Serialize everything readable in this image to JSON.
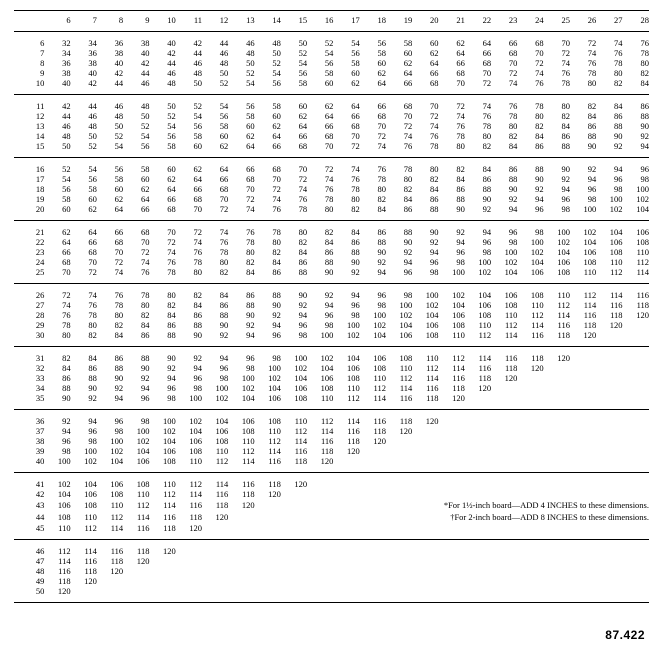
{
  "columns": [
    6,
    7,
    8,
    9,
    10,
    11,
    12,
    13,
    14,
    15,
    16,
    17,
    18,
    19,
    20,
    21,
    22,
    23,
    24,
    25,
    26,
    27,
    28
  ],
  "blocks": [
    {
      "rows": [
        {
          "label": 6,
          "vals": [
            32,
            34,
            36,
            38,
            40,
            42,
            44,
            46,
            48,
            50,
            52,
            54,
            56,
            58,
            60,
            62,
            64,
            66,
            68,
            70,
            72,
            74,
            76
          ]
        },
        {
          "label": 7,
          "vals": [
            34,
            36,
            38,
            40,
            42,
            44,
            46,
            48,
            50,
            52,
            54,
            56,
            58,
            60,
            62,
            64,
            66,
            68,
            70,
            72,
            74,
            76,
            78
          ]
        },
        {
          "label": 8,
          "vals": [
            36,
            38,
            40,
            42,
            44,
            46,
            48,
            50,
            52,
            54,
            56,
            58,
            60,
            62,
            64,
            66,
            68,
            70,
            72,
            74,
            76,
            78,
            80
          ]
        },
        {
          "label": 9,
          "vals": [
            38,
            40,
            42,
            44,
            46,
            48,
            50,
            52,
            54,
            56,
            58,
            60,
            62,
            64,
            66,
            68,
            70,
            72,
            74,
            76,
            78,
            80,
            82
          ]
        },
        {
          "label": 10,
          "vals": [
            40,
            42,
            44,
            46,
            48,
            50,
            52,
            54,
            56,
            58,
            60,
            62,
            64,
            66,
            68,
            70,
            72,
            74,
            76,
            78,
            80,
            82,
            84
          ]
        }
      ]
    },
    {
      "rows": [
        {
          "label": 11,
          "vals": [
            42,
            44,
            46,
            48,
            50,
            52,
            54,
            56,
            58,
            60,
            62,
            64,
            66,
            68,
            70,
            72,
            74,
            76,
            78,
            80,
            82,
            84,
            86
          ]
        },
        {
          "label": 12,
          "vals": [
            44,
            46,
            48,
            50,
            52,
            54,
            56,
            58,
            60,
            62,
            64,
            66,
            68,
            70,
            72,
            74,
            76,
            78,
            80,
            82,
            84,
            86,
            88
          ]
        },
        {
          "label": 13,
          "vals": [
            46,
            48,
            50,
            52,
            54,
            56,
            58,
            60,
            62,
            64,
            66,
            68,
            70,
            72,
            74,
            76,
            78,
            80,
            82,
            84,
            86,
            88,
            90
          ]
        },
        {
          "label": 14,
          "vals": [
            48,
            50,
            52,
            54,
            56,
            58,
            60,
            62,
            64,
            66,
            68,
            70,
            72,
            74,
            76,
            78,
            80,
            82,
            84,
            86,
            88,
            90,
            92
          ]
        },
        {
          "label": 15,
          "vals": [
            50,
            52,
            54,
            56,
            58,
            60,
            62,
            64,
            66,
            68,
            70,
            72,
            74,
            76,
            78,
            80,
            82,
            84,
            86,
            88,
            90,
            92,
            94
          ]
        }
      ]
    },
    {
      "rows": [
        {
          "label": 16,
          "vals": [
            52,
            54,
            56,
            58,
            60,
            62,
            64,
            66,
            68,
            70,
            72,
            74,
            76,
            78,
            80,
            82,
            84,
            86,
            88,
            90,
            92,
            94,
            96
          ]
        },
        {
          "label": 17,
          "vals": [
            54,
            56,
            58,
            60,
            62,
            64,
            66,
            68,
            70,
            72,
            74,
            76,
            78,
            80,
            82,
            84,
            86,
            88,
            90,
            92,
            94,
            96,
            98
          ]
        },
        {
          "label": 18,
          "vals": [
            56,
            58,
            60,
            62,
            64,
            66,
            68,
            70,
            72,
            74,
            76,
            78,
            80,
            82,
            84,
            86,
            88,
            90,
            92,
            94,
            96,
            98,
            100
          ]
        },
        {
          "label": 19,
          "vals": [
            58,
            60,
            62,
            64,
            66,
            68,
            70,
            72,
            74,
            76,
            78,
            80,
            82,
            84,
            86,
            88,
            90,
            92,
            94,
            96,
            98,
            100,
            102
          ]
        },
        {
          "label": 20,
          "vals": [
            60,
            62,
            64,
            66,
            68,
            70,
            72,
            74,
            76,
            78,
            80,
            82,
            84,
            86,
            88,
            90,
            92,
            94,
            96,
            98,
            100,
            102,
            104
          ]
        }
      ]
    },
    {
      "rows": [
        {
          "label": 21,
          "vals": [
            62,
            64,
            66,
            68,
            70,
            72,
            74,
            76,
            78,
            80,
            82,
            84,
            86,
            88,
            90,
            92,
            94,
            96,
            98,
            100,
            102,
            104,
            106
          ]
        },
        {
          "label": 22,
          "vals": [
            64,
            66,
            68,
            70,
            72,
            74,
            76,
            78,
            80,
            82,
            84,
            86,
            88,
            90,
            92,
            94,
            96,
            98,
            100,
            102,
            104,
            106,
            108
          ]
        },
        {
          "label": 23,
          "vals": [
            66,
            68,
            70,
            72,
            74,
            76,
            78,
            80,
            82,
            84,
            86,
            88,
            90,
            92,
            94,
            96,
            98,
            100,
            102,
            104,
            106,
            108,
            110
          ]
        },
        {
          "label": 24,
          "vals": [
            68,
            70,
            72,
            74,
            76,
            78,
            80,
            82,
            84,
            86,
            88,
            90,
            92,
            94,
            96,
            98,
            100,
            102,
            104,
            106,
            108,
            110,
            112
          ]
        },
        {
          "label": 25,
          "vals": [
            70,
            72,
            74,
            76,
            78,
            80,
            82,
            84,
            86,
            88,
            90,
            92,
            94,
            96,
            98,
            100,
            102,
            104,
            106,
            108,
            110,
            112,
            114
          ]
        }
      ]
    },
    {
      "rows": [
        {
          "label": 26,
          "vals": [
            72,
            74,
            76,
            78,
            80,
            82,
            84,
            86,
            88,
            90,
            92,
            94,
            96,
            98,
            100,
            102,
            104,
            106,
            108,
            110,
            112,
            114,
            116
          ]
        },
        {
          "label": 27,
          "vals": [
            74,
            76,
            78,
            80,
            82,
            84,
            86,
            88,
            90,
            92,
            94,
            96,
            98,
            100,
            102,
            104,
            106,
            108,
            110,
            112,
            114,
            116,
            118
          ]
        },
        {
          "label": 28,
          "vals": [
            76,
            78,
            80,
            82,
            84,
            86,
            88,
            90,
            92,
            94,
            96,
            98,
            100,
            102,
            104,
            106,
            108,
            110,
            112,
            114,
            116,
            118,
            120
          ]
        },
        {
          "label": 29,
          "vals": [
            78,
            80,
            82,
            84,
            86,
            88,
            90,
            92,
            94,
            96,
            98,
            100,
            102,
            104,
            106,
            108,
            110,
            112,
            114,
            116,
            118,
            120
          ]
        },
        {
          "label": 30,
          "vals": [
            80,
            82,
            84,
            86,
            88,
            90,
            92,
            94,
            96,
            98,
            100,
            102,
            104,
            106,
            108,
            110,
            112,
            114,
            116,
            118,
            120
          ]
        }
      ]
    },
    {
      "rows": [
        {
          "label": 31,
          "vals": [
            82,
            84,
            86,
            88,
            90,
            92,
            94,
            96,
            98,
            100,
            102,
            104,
            106,
            108,
            110,
            112,
            114,
            116,
            118,
            120
          ]
        },
        {
          "label": 32,
          "vals": [
            84,
            86,
            88,
            90,
            92,
            94,
            96,
            98,
            100,
            102,
            104,
            106,
            108,
            110,
            112,
            114,
            116,
            118,
            120
          ]
        },
        {
          "label": 33,
          "vals": [
            86,
            88,
            90,
            92,
            94,
            96,
            98,
            100,
            102,
            104,
            106,
            108,
            110,
            112,
            114,
            116,
            118,
            120
          ]
        },
        {
          "label": 34,
          "vals": [
            88,
            90,
            92,
            94,
            96,
            98,
            100,
            102,
            104,
            106,
            108,
            110,
            112,
            114,
            116,
            118,
            120
          ]
        },
        {
          "label": 35,
          "vals": [
            90,
            92,
            94,
            96,
            98,
            100,
            102,
            104,
            106,
            108,
            110,
            112,
            114,
            116,
            118,
            120
          ]
        }
      ]
    },
    {
      "rows": [
        {
          "label": 36,
          "vals": [
            92,
            94,
            96,
            98,
            100,
            102,
            104,
            106,
            108,
            110,
            112,
            114,
            116,
            118,
            120
          ]
        },
        {
          "label": 37,
          "vals": [
            94,
            96,
            98,
            100,
            102,
            104,
            106,
            108,
            110,
            112,
            114,
            116,
            118,
            120
          ]
        },
        {
          "label": 38,
          "vals": [
            96,
            98,
            100,
            102,
            104,
            106,
            108,
            110,
            112,
            114,
            116,
            118,
            120
          ]
        },
        {
          "label": 39,
          "vals": [
            98,
            100,
            102,
            104,
            106,
            108,
            110,
            112,
            114,
            116,
            118,
            120
          ]
        },
        {
          "label": 40,
          "vals": [
            100,
            102,
            104,
            106,
            108,
            110,
            112,
            114,
            116,
            118,
            120
          ]
        }
      ]
    },
    {
      "rows": [
        {
          "label": 41,
          "vals": [
            102,
            104,
            106,
            108,
            110,
            112,
            114,
            116,
            118,
            120
          ]
        },
        {
          "label": 42,
          "vals": [
            104,
            106,
            108,
            110,
            112,
            114,
            116,
            118,
            120
          ]
        },
        {
          "label": 43,
          "vals": [
            106,
            108,
            110,
            112,
            114,
            116,
            118,
            120
          ]
        }
      ],
      "footnotes": [
        "*For 1½-inch board—ADD 4 INCHES to these dimensions.",
        "†For 2-inch board—ADD 8 INCHES to these dimensions."
      ],
      "footnote_rows": [
        {
          "label": 44,
          "vals": [
            108,
            110,
            112,
            114,
            116,
            118,
            120
          ]
        },
        {
          "label": 45,
          "vals": [
            110,
            112,
            114,
            116,
            118,
            120
          ]
        }
      ]
    },
    {
      "rows": [
        {
          "label": 46,
          "vals": [
            112,
            114,
            116,
            118,
            120
          ]
        },
        {
          "label": 47,
          "vals": [
            114,
            116,
            118,
            120
          ]
        },
        {
          "label": 48,
          "vals": [
            116,
            118,
            120
          ]
        },
        {
          "label": 49,
          "vals": [
            118,
            120
          ]
        },
        {
          "label": 50,
          "vals": [
            120
          ]
        }
      ]
    }
  ],
  "figure_number": "87.422"
}
